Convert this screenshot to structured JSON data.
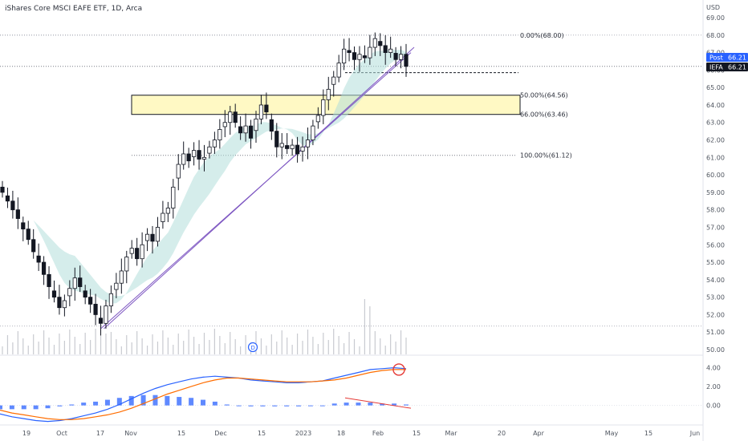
{
  "header": {
    "title": "iShares Core MSCI EAFE ETF, 1D, Arca"
  },
  "currency": "USD",
  "badges": [
    {
      "label": "Post",
      "value": "66.21",
      "color": "#2962ff"
    },
    {
      "label": "IEFA",
      "value": "66.21",
      "color": "#131722"
    }
  ],
  "colors": {
    "bull": "#ffffff",
    "bear": "#131722",
    "trendline": "#7e57c2",
    "macd": "#2962ff",
    "signal": "#ff6d00",
    "histogram": "#2962ff",
    "cloud_upper": "#b2dfdb",
    "cloud_lower": "#d1d4dc",
    "zone": "#fff9c4"
  },
  "fib_levels": [
    {
      "label": "0.00%(68.00)",
      "price": 68.0
    },
    {
      "label": "50.00%(64.56)",
      "price": 64.56
    },
    {
      "label": "66.00%(63.46)",
      "price": 63.46
    },
    {
      "label": "100.00%(61.12)",
      "price": 61.12
    }
  ],
  "macd_axis": [
    "4.00",
    "2.00",
    "0.00"
  ],
  "dividend_marker": "D",
  "chart_data": {
    "type": "candlestick",
    "title": "iShares Core MSCI EAFE ETF, 1D, Arca",
    "y_unit": "USD",
    "ylim": [
      49.8,
      69.8
    ],
    "y_ticks": [
      "69.00",
      "68.00",
      "67.00",
      "66.00",
      "65.00",
      "64.00",
      "63.00",
      "62.00",
      "61.00",
      "60.00",
      "59.00",
      "58.00",
      "57.00",
      "56.00",
      "55.00",
      "54.00",
      "53.00",
      "52.00",
      "51.00",
      "50.00"
    ],
    "x_ticks": [
      "19",
      "Oct",
      "17",
      "Nov",
      "15",
      "Dec",
      "15",
      "2023",
      "18",
      "Feb",
      "15",
      "Mar",
      "20",
      "Apr",
      "May",
      "15",
      "Jun"
    ],
    "last_price": 66.21,
    "support_zone": [
      63.46,
      64.56
    ],
    "close_approx": [
      59.0,
      58.5,
      58.0,
      57.5,
      56.9,
      56.3,
      55.6,
      55.0,
      54.3,
      53.6,
      53.0,
      52.4,
      52.8,
      53.5,
      54.1,
      53.6,
      53.0,
      52.6,
      52.0,
      51.5,
      52.5,
      53.2,
      53.8,
      54.5,
      55.3,
      55.8,
      55.2,
      56.0,
      56.6,
      56.2,
      57.0,
      57.8,
      58.1,
      59.3,
      60.6,
      61.2,
      60.8,
      61.4,
      60.9,
      61.0,
      61.6,
      62.0,
      62.6,
      63.0,
      63.6,
      63.0,
      62.4,
      62.8,
      62.1,
      63.2,
      64.0,
      63.6,
      62.5,
      61.6,
      61.8,
      61.5,
      61.7,
      61.2,
      61.6,
      62.0,
      62.8,
      63.4,
      64.3,
      64.9,
      65.6,
      66.4,
      67.2,
      67.0,
      66.6,
      66.9,
      66.7,
      67.3,
      67.8,
      67.4,
      67.0,
      67.2,
      66.6,
      66.9,
      66.21
    ],
    "macd_approx": [
      -0.9,
      -1.2,
      -1.4,
      -1.6,
      -1.7,
      -1.6,
      -1.4,
      -1.1,
      -0.8,
      -0.4,
      0.1,
      0.7,
      1.3,
      1.8,
      2.2,
      2.5,
      2.8,
      3.0,
      3.1,
      3.0,
      2.9,
      2.7,
      2.6,
      2.5,
      2.4,
      2.4,
      2.5,
      2.6,
      2.9,
      3.2,
      3.5,
      3.8,
      3.9,
      4.0,
      3.9
    ],
    "signal_approx": [
      -0.5,
      -0.8,
      -1.0,
      -1.2,
      -1.4,
      -1.5,
      -1.5,
      -1.4,
      -1.2,
      -1.0,
      -0.7,
      -0.3,
      0.2,
      0.7,
      1.2,
      1.6,
      2.0,
      2.4,
      2.7,
      2.9,
      2.9,
      2.8,
      2.7,
      2.6,
      2.5,
      2.5,
      2.5,
      2.6,
      2.7,
      2.9,
      3.2,
      3.5,
      3.7,
      3.8,
      3.8
    ]
  }
}
